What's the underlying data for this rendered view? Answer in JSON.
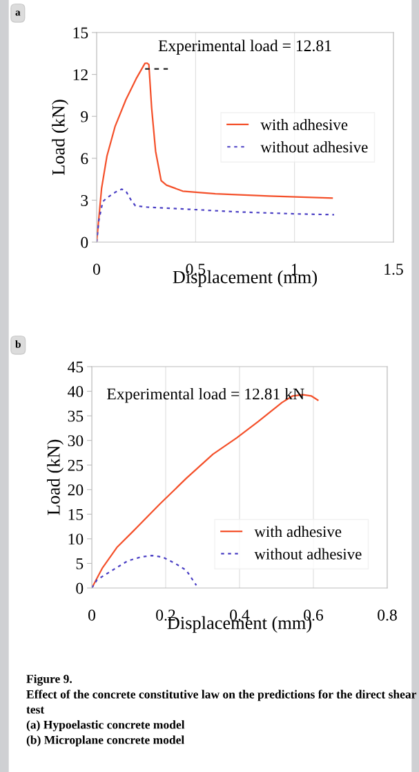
{
  "chart_data": [
    {
      "type": "line",
      "title": "a",
      "xlabel": "Displacement (mm)",
      "ylabel": "Load (kN)",
      "xlim": [
        0,
        1.5
      ],
      "ylim": [
        0,
        15
      ],
      "xticks": [
        0,
        0.5,
        1,
        1.5
      ],
      "yticks": [
        0,
        3,
        6,
        9,
        12,
        15
      ],
      "grid": "x",
      "legend": "right",
      "annotations": [
        "Experimental load = 12.81"
      ],
      "series": [
        {
          "name": "with adhesive",
          "color": "#f4502a",
          "line_style": "solid",
          "x": [
            0,
            0.025,
            0.052,
            0.093,
            0.148,
            0.2,
            0.244,
            0.255,
            0.264,
            0.278,
            0.298,
            0.326,
            0.353,
            0.435,
            0.6,
            0.87,
            1.19
          ],
          "values": [
            0,
            3.85,
            6.15,
            8.27,
            10.2,
            11.7,
            12.79,
            12.81,
            12.7,
            9.6,
            6.5,
            4.4,
            4.08,
            3.65,
            3.46,
            3.3,
            3.15
          ]
        },
        {
          "name": "without adhesive",
          "color": "#4a3fc4",
          "line_style": "dotted",
          "x": [
            0,
            0.011,
            0.031,
            0.052,
            0.093,
            0.127,
            0.148,
            0.175,
            0.196,
            0.257,
            0.463,
            0.736,
            1.01,
            1.2
          ],
          "values": [
            0,
            1.54,
            2.9,
            3.17,
            3.56,
            3.79,
            3.65,
            2.98,
            2.6,
            2.5,
            2.35,
            2.15,
            2.02,
            1.96
          ]
        },
        {
          "color": "#222222",
          "line_style": "dashed",
          "x": [
            0.245,
            0.36
          ],
          "values": [
            12.4,
            12.4
          ]
        }
      ]
    },
    {
      "type": "line",
      "title": "b",
      "xlabel": "Displacement (mm)",
      "ylabel": "Load (kN)",
      "xlim": [
        0,
        0.8
      ],
      "ylim": [
        0,
        45
      ],
      "xticks": [
        0,
        0.2,
        0.4,
        0.6,
        0.8
      ],
      "yticks": [
        0,
        5,
        10,
        15,
        20,
        25,
        30,
        35,
        40,
        45
      ],
      "grid": "x",
      "legend": "lower right",
      "annotations": [
        "Experimental load = 12.81 kN",
        "Figure 9.",
        "Effect of the concrete constitutive law on the predictions for the direct shear test",
        "(a) Hypoelastic concrete model",
        "(b) Microplane concrete model"
      ],
      "series": [
        {
          "name": "with adhesive",
          "color": "#f4502a",
          "line_style": "solid",
          "x": [
            0,
            0.029,
            0.068,
            0.112,
            0.184,
            0.256,
            0.328,
            0.392,
            0.45,
            0.515,
            0.544,
            0.572,
            0.594,
            0.612
          ],
          "values": [
            0,
            4.1,
            8.25,
            11.55,
            17.05,
            22.3,
            27.2,
            30.5,
            33.8,
            37.7,
            39.05,
            39.3,
            39.05,
            38.2
          ]
        },
        {
          "name": "without adhesive",
          "color": "#4a3fc4",
          "line_style": "dotted",
          "x": [
            0,
            0.014,
            0.032,
            0.061,
            0.097,
            0.133,
            0.162,
            0.191,
            0.227,
            0.256,
            0.283
          ],
          "values": [
            0,
            1.65,
            2.5,
            3.85,
            5.5,
            6.3,
            6.6,
            6.3,
            4.95,
            3.58,
            0.55
          ]
        }
      ]
    }
  ]
}
